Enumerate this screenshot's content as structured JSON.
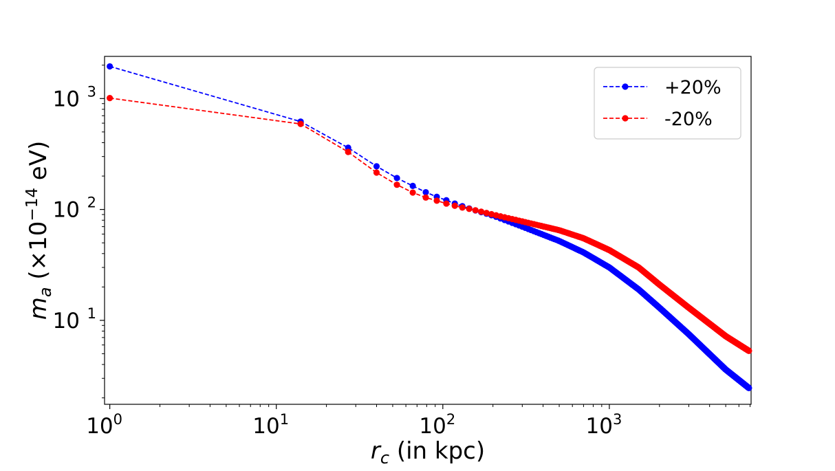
{
  "chart_data": {
    "type": "line",
    "xscale": "log",
    "yscale": "log",
    "xlim": [
      0.93,
      7100
    ],
    "ylim": [
      1.75,
      2400
    ],
    "grid": false,
    "legend_position": "top-right",
    "xlabel": {
      "var": "r",
      "sub": "c",
      "text": " (in kpc)"
    },
    "ylabel": {
      "var": "m",
      "sub": "a",
      "pre": " (×10",
      "exp": "−14",
      "post": " eV)"
    },
    "x_ticks": [
      {
        "base": "10",
        "exp": "0",
        "value": 1
      },
      {
        "base": "10",
        "exp": "1",
        "value": 10
      },
      {
        "base": "10",
        "exp": "2",
        "value": 100
      },
      {
        "base": "10",
        "exp": "3",
        "value": 1000
      }
    ],
    "y_ticks": [
      {
        "base": "10",
        "exp": "1",
        "value": 10
      },
      {
        "base": "10",
        "exp": "2",
        "value": 100
      },
      {
        "base": "10",
        "exp": "3",
        "value": 1000
      }
    ],
    "series": [
      {
        "name": "+20%",
        "color": "#0000ff",
        "anchors": [
          [
            1,
            1950
          ],
          [
            14,
            620
          ],
          [
            27,
            360
          ],
          [
            40,
            245
          ],
          [
            53,
            192
          ],
          [
            66,
            163
          ],
          [
            79,
            143
          ],
          [
            92,
            130
          ],
          [
            105,
            121
          ],
          [
            118,
            113
          ],
          [
            131,
            107
          ],
          [
            150,
            100
          ],
          [
            200,
            88
          ],
          [
            300,
            70
          ],
          [
            500,
            52
          ],
          [
            700,
            41
          ],
          [
            1000,
            30
          ],
          [
            1500,
            19
          ],
          [
            2000,
            13
          ],
          [
            3000,
            7.5
          ],
          [
            5000,
            3.6
          ],
          [
            6900,
            2.45
          ]
        ]
      },
      {
        "name": "-20%",
        "color": "#ff0000",
        "anchors": [
          [
            1,
            1010
          ],
          [
            14,
            590
          ],
          [
            27,
            330
          ],
          [
            40,
            215
          ],
          [
            53,
            167
          ],
          [
            66,
            142
          ],
          [
            79,
            128
          ],
          [
            92,
            120
          ],
          [
            105,
            113
          ],
          [
            118,
            108
          ],
          [
            131,
            104
          ],
          [
            150,
            100
          ],
          [
            200,
            90
          ],
          [
            300,
            78
          ],
          [
            500,
            65
          ],
          [
            700,
            55
          ],
          [
            1000,
            43
          ],
          [
            1500,
            30
          ],
          [
            2000,
            21
          ],
          [
            3000,
            13
          ],
          [
            5000,
            7.2
          ],
          [
            6900,
            5.3
          ]
        ]
      }
    ]
  }
}
